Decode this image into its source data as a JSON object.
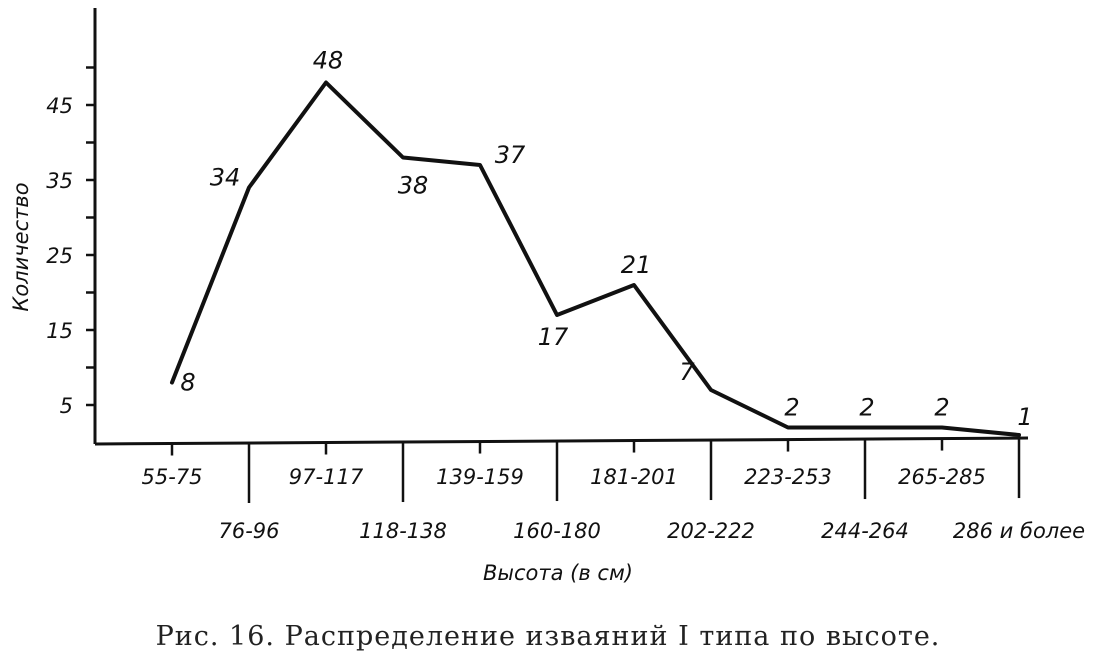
{
  "chart_data": {
    "type": "line",
    "categories": [
      "55-75",
      "76-96",
      "97-117",
      "118-138",
      "139-159",
      "160-180",
      "181-201",
      "202-222",
      "223-253",
      "244-264",
      "265-285",
      "286 и более"
    ],
    "series": [
      {
        "values": [
          8,
          34,
          48,
          38,
          37,
          17,
          21,
          7,
          2,
          2,
          2,
          1
        ]
      }
    ],
    "data_labels": [
      "8",
      "34",
      "48",
      "38",
      "37",
      "17",
      "21",
      "7",
      "2",
      "2",
      "2",
      "1"
    ],
    "xlabel": "Высота (в см)",
    "ylabel": "Количество",
    "yticks": [
      5,
      15,
      25,
      35,
      45
    ],
    "ylim": [
      0,
      50
    ],
    "grid": false,
    "caption": "Рис. 16. Распределение изваяний I типа по высоте."
  }
}
